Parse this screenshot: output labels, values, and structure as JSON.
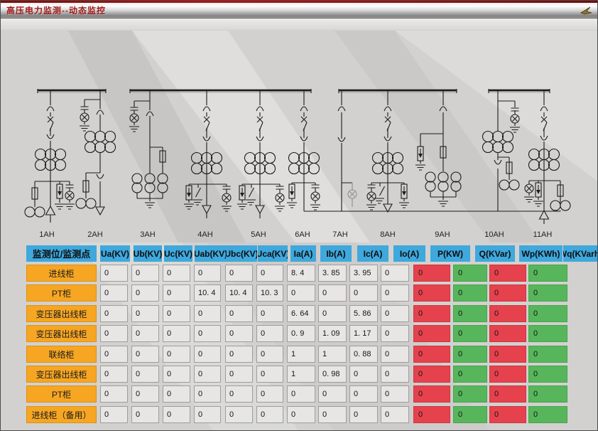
{
  "window": {
    "title": "高压电力监测--动态监控",
    "title_icon": "cursor-icon"
  },
  "diagram": {
    "bay_labels": [
      "1AH",
      "2AH",
      "3AH",
      "4AH",
      "5AH",
      "6AH",
      "7AH",
      "8AH",
      "9AH",
      "10AH",
      "11AH"
    ]
  },
  "table": {
    "headers": [
      "监测位/监测点",
      "Ua(KV)",
      "Ub(KV)",
      "Uc(KV)",
      "Uab(KV)",
      "Ubc(KV)",
      "Uca(KV)",
      "Ia(A)",
      "Ib(A)",
      "Ic(A)",
      "Io(A)",
      "P(KW)",
      "Q(KVar)",
      "Wp(KWh)",
      "Wq(KVarh)"
    ],
    "rows": [
      {
        "label": "进线柜",
        "values": [
          "0",
          "0",
          "0",
          "0",
          "0",
          "0",
          "8. 4",
          "3. 85",
          "3. 95",
          "0",
          "0",
          "0",
          "0",
          "0"
        ]
      },
      {
        "label": "PT柜",
        "values": [
          "0",
          "0",
          "0",
          "10. 4",
          "10. 4",
          "10. 3",
          "0",
          "0",
          "0",
          "0",
          "0",
          "0",
          "0",
          "0"
        ]
      },
      {
        "label": "变压器出线柜",
        "values": [
          "0",
          "0",
          "0",
          "0",
          "0",
          "0",
          "6. 64",
          "0",
          "5. 86",
          "0",
          "0",
          "0",
          "0",
          "0"
        ]
      },
      {
        "label": "变压器出线柜",
        "values": [
          "0",
          "0",
          "0",
          "0",
          "0",
          "0",
          "0. 9",
          "1. 09",
          "1. 17",
          "0",
          "0",
          "0",
          "0",
          "0"
        ]
      },
      {
        "label": "联络柜",
        "values": [
          "0",
          "0",
          "0",
          "0",
          "0",
          "0",
          "1",
          "1",
          "0. 88",
          "0",
          "0",
          "0",
          "0",
          "0"
        ]
      },
      {
        "label": "变压器出线柜",
        "values": [
          "0",
          "0",
          "0",
          "0",
          "0",
          "0",
          "1",
          "0. 98",
          "0",
          "0",
          "0",
          "0",
          "0",
          "0"
        ]
      },
      {
        "label": "PT柜",
        "values": [
          "0",
          "0",
          "0",
          "0",
          "0",
          "0",
          "0",
          "0",
          "0",
          "0",
          "0",
          "0",
          "0",
          "0"
        ]
      },
      {
        "label": "进线柜（备用）",
        "values": [
          "0",
          "0",
          "0",
          "0",
          "0",
          "0",
          "0",
          "0",
          "0",
          "0",
          "0",
          "0",
          "0",
          "0"
        ]
      }
    ],
    "colors": {
      "header_bg": "#3fa8dc",
      "label_bg": "#f6a623",
      "cell_bg": "#e7e6e4",
      "active_power_bg": "#e5424d",
      "reactive_power_bg": "#57b65c"
    }
  }
}
